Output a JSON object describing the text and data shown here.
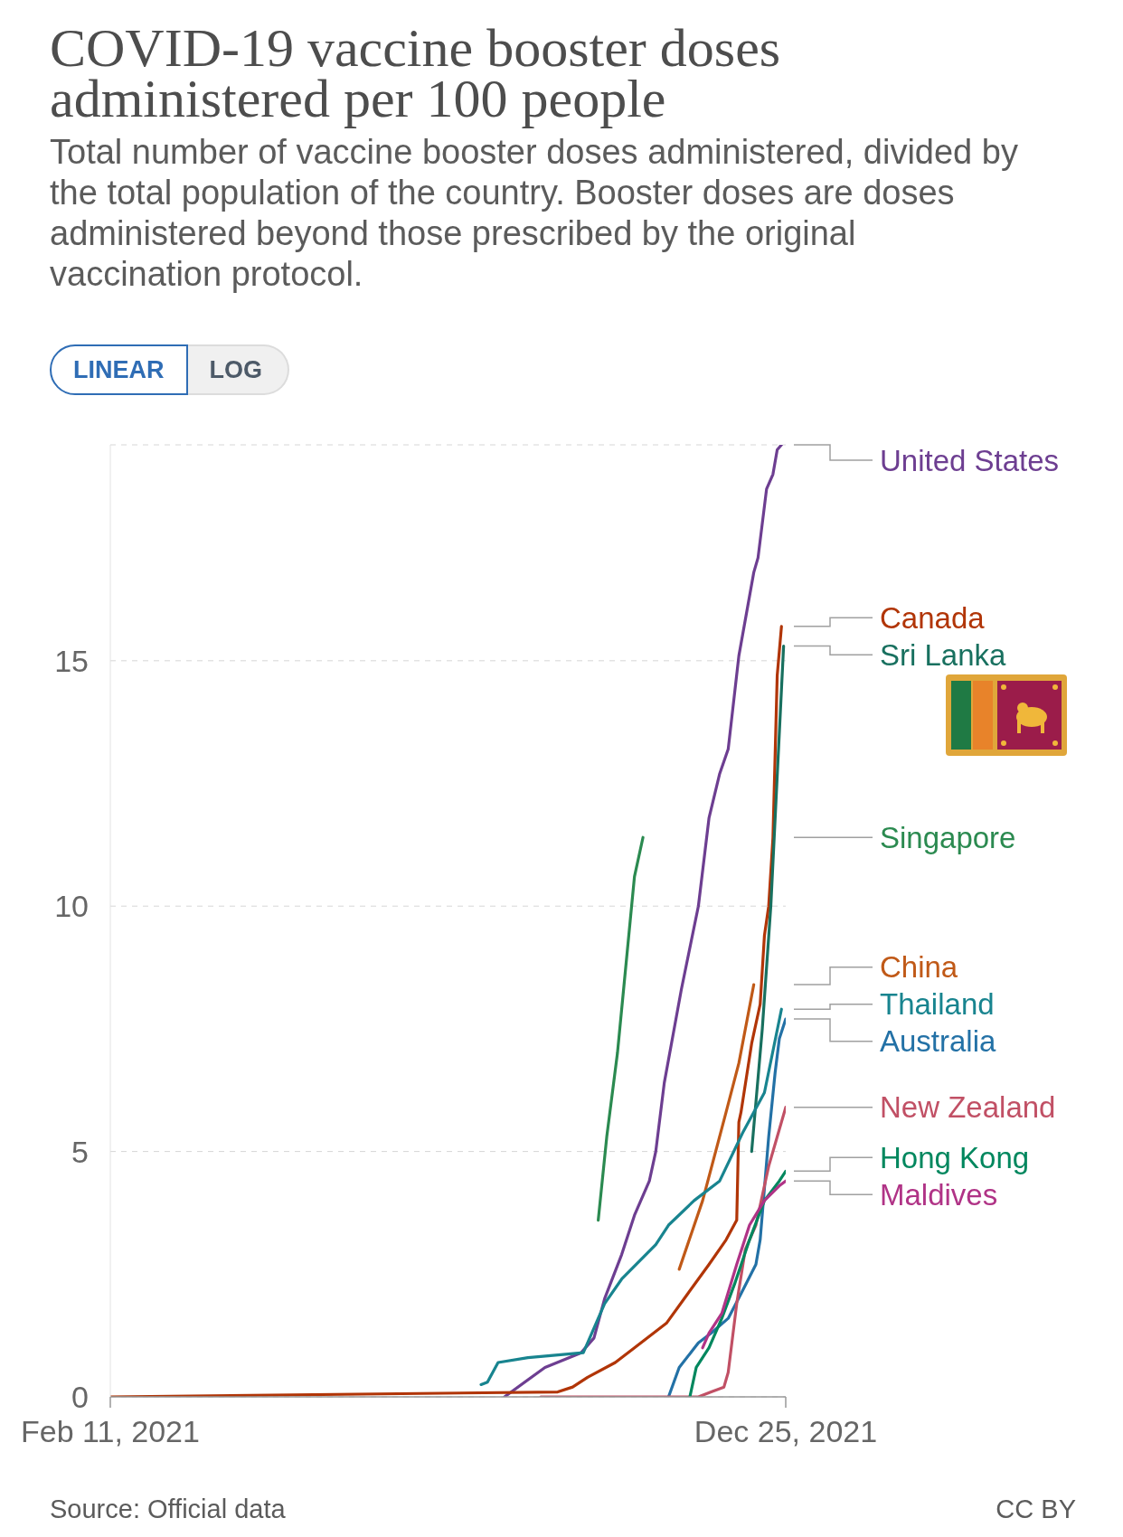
{
  "chart_data": {
    "type": "line",
    "title": "COVID-19 vaccine booster doses administered per 100 people",
    "subtitle": "Total number of vaccine booster doses administered, divided by the total population of the country. Booster doses are doses administered beyond those prescribed by the original vaccination protocol.",
    "annotations": [
      "LINEAR",
      "LOG",
      "Source: Official data",
      "CC BY"
    ],
    "xlim": [
      "2021-02-11",
      "2021-12-25"
    ],
    "xticks": [
      {
        "value": "2021-02-11",
        "label": "Feb 11, 2021"
      },
      {
        "value": "2021-12-25",
        "label": "Dec 25, 2021"
      }
    ],
    "ylim": [
      0,
      19.4
    ],
    "yticks": [
      0,
      5,
      10,
      15
    ],
    "grid": "y",
    "legend": "right",
    "series": [
      {
        "name": "United States",
        "color": "#6d3e91",
        "x": [
          "2021-08-15",
          "2021-09-03",
          "2021-09-20",
          "2021-09-26",
          "2021-10-01",
          "2021-10-09",
          "2021-10-15",
          "2021-10-22",
          "2021-10-25",
          "2021-10-29",
          "2021-11-06",
          "2021-11-14",
          "2021-11-19",
          "2021-11-24",
          "2021-11-28",
          "2021-12-03",
          "2021-12-10",
          "2021-12-12",
          "2021-12-16",
          "2021-12-19",
          "2021-12-21",
          "2021-12-23"
        ],
        "values": [
          0,
          0.6,
          0.9,
          1.2,
          2.0,
          2.9,
          3.7,
          4.4,
          5.0,
          6.4,
          8.3,
          10.0,
          11.8,
          12.7,
          13.2,
          15.1,
          16.8,
          17.1,
          18.5,
          18.8,
          19.3,
          19.4
        ]
      },
      {
        "name": "Canada",
        "color": "#b13507",
        "x": [
          "2021-02-11",
          "2021-09-09",
          "2021-09-16",
          "2021-09-23",
          "2021-10-06",
          "2021-10-15",
          "2021-10-30",
          "2021-11-09",
          "2021-11-19",
          "2021-11-27",
          "2021-12-02",
          "2021-12-03",
          "2021-12-04",
          "2021-12-09",
          "2021-12-13",
          "2021-12-15",
          "2021-12-17",
          "2021-12-19",
          "2021-12-21",
          "2021-12-23"
        ],
        "values": [
          0,
          0.1,
          0.2,
          0.4,
          0.7,
          1.0,
          1.5,
          2.1,
          2.7,
          3.2,
          3.6,
          5.6,
          5.8,
          7.2,
          8.0,
          9.4,
          10.0,
          11.4,
          14.7,
          15.7
        ]
      },
      {
        "name": "Sri Lanka",
        "color": "#18705f",
        "x": [
          "2021-12-09",
          "2021-12-14",
          "2021-12-18",
          "2021-12-24"
        ],
        "values": [
          5.0,
          7.5,
          10.0,
          15.3
        ]
      },
      {
        "name": "Singapore",
        "color": "#2b8a50",
        "x": [
          "2021-09-28",
          "2021-10-02",
          "2021-10-07",
          "2021-10-13",
          "2021-10-15",
          "2021-10-19"
        ],
        "values": [
          3.6,
          5.3,
          7.0,
          9.7,
          10.6,
          11.4
        ]
      },
      {
        "name": "China",
        "color": "#c05917",
        "x": [
          "2021-11-05",
          "2021-11-16",
          "2021-11-27",
          "2021-12-03",
          "2021-12-10"
        ],
        "values": [
          2.6,
          4.0,
          5.8,
          6.8,
          8.4
        ]
      },
      {
        "name": "Thailand",
        "color": "#18848f",
        "x": [
          "2021-08-04",
          "2021-08-07",
          "2021-08-12",
          "2021-08-26",
          "2021-09-21",
          "2021-10-01",
          "2021-10-09",
          "2021-10-25",
          "2021-10-31",
          "2021-11-12",
          "2021-11-24",
          "2021-12-05",
          "2021-12-15",
          "2021-12-23"
        ],
        "values": [
          0.25,
          0.3,
          0.7,
          0.8,
          0.9,
          1.9,
          2.4,
          3.1,
          3.5,
          4.0,
          4.4,
          5.4,
          6.2,
          7.9
        ]
      },
      {
        "name": "Australia",
        "color": "#2371a6",
        "x": [
          "2021-10-31",
          "2021-11-05",
          "2021-11-14",
          "2021-11-20",
          "2021-11-28",
          "2021-12-04",
          "2021-12-11",
          "2021-12-13",
          "2021-12-17",
          "2021-12-20",
          "2021-12-22",
          "2021-12-25"
        ],
        "values": [
          0,
          0.6,
          1.1,
          1.3,
          1.6,
          2.1,
          2.7,
          3.2,
          5.3,
          6.6,
          7.3,
          7.7
        ]
      },
      {
        "name": "New Zealand",
        "color": "#c15065",
        "x": [
          "2021-09-01",
          "2021-11-14",
          "2021-11-20",
          "2021-11-26",
          "2021-11-28",
          "2021-12-02",
          "2021-12-06",
          "2021-12-11",
          "2021-12-17",
          "2021-12-25"
        ],
        "values": [
          0,
          0,
          0.1,
          0.2,
          0.5,
          1.9,
          3.0,
          3.5,
          4.7,
          5.9
        ]
      },
      {
        "name": "Hong Kong",
        "color": "#00875e",
        "x": [
          "2021-11-10",
          "2021-11-13",
          "2021-11-19",
          "2021-11-25",
          "2021-12-01",
          "2021-12-08",
          "2021-12-15",
          "2021-12-22",
          "2021-12-25"
        ],
        "values": [
          0,
          0.6,
          1.0,
          1.6,
          2.3,
          3.2,
          4.0,
          4.4,
          4.6
        ]
      },
      {
        "name": "Maldives",
        "color": "#b03386",
        "x": [
          "2021-11-16",
          "2021-11-19",
          "2021-11-25",
          "2021-12-02",
          "2021-12-08",
          "2021-12-15",
          "2021-12-22",
          "2021-12-25"
        ],
        "values": [
          1.0,
          1.3,
          1.7,
          2.7,
          3.5,
          4.0,
          4.3,
          4.4
        ]
      }
    ]
  }
}
